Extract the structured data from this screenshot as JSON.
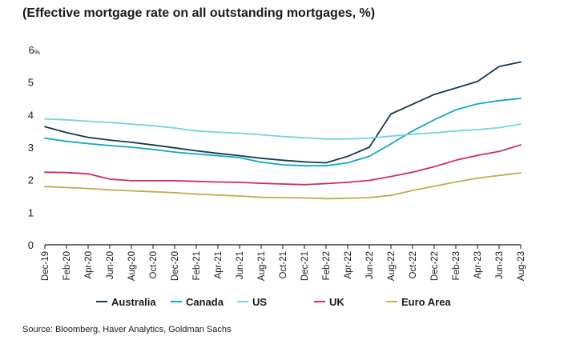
{
  "title": "(Effective mortgage rate on all outstanding mortgages, %)",
  "source": "Source: Bloomberg, Haver Analytics, Goldman Sachs",
  "chart_data": {
    "type": "line",
    "title": "(Effective mortgage rate on all outstanding mortgages, %)",
    "xlabel": "",
    "ylabel": "",
    "y_unit": "%",
    "ylim": [
      0,
      6
    ],
    "yticks": [
      0,
      1,
      2,
      3,
      4,
      5,
      6
    ],
    "grid": false,
    "legend_position": "bottom",
    "x": [
      "Dec-19",
      "Feb-20",
      "Apr-20",
      "Jun-20",
      "Aug-20",
      "Oct-20",
      "Dec-20",
      "Feb-21",
      "Apr-21",
      "Jun-21",
      "Aug-21",
      "Oct-21",
      "Dec-21",
      "Feb-22",
      "Apr-22",
      "Jun-22",
      "Aug-22",
      "Oct-22",
      "Dec-22",
      "Feb-23",
      "Apr-23",
      "Jun-23",
      "Aug-23"
    ],
    "series": [
      {
        "name": "Australia",
        "color": "#16394f",
        "values": [
          3.63,
          3.45,
          3.3,
          3.22,
          3.15,
          3.07,
          2.98,
          2.89,
          2.81,
          2.74,
          2.66,
          2.6,
          2.55,
          2.52,
          2.72,
          3.0,
          4.02,
          4.32,
          4.62,
          4.82,
          5.02,
          5.48,
          5.62
        ]
      },
      {
        "name": "Canada",
        "color": "#10a7c9",
        "values": [
          3.28,
          3.18,
          3.11,
          3.05,
          3.0,
          2.93,
          2.85,
          2.79,
          2.74,
          2.68,
          2.54,
          2.46,
          2.43,
          2.43,
          2.52,
          2.72,
          3.1,
          3.5,
          3.84,
          4.15,
          4.33,
          4.43,
          4.5
        ]
      },
      {
        "name": "US",
        "color": "#72d3e0",
        "values": [
          3.87,
          3.84,
          3.8,
          3.76,
          3.71,
          3.66,
          3.59,
          3.5,
          3.46,
          3.43,
          3.38,
          3.33,
          3.29,
          3.25,
          3.25,
          3.28,
          3.34,
          3.4,
          3.44,
          3.5,
          3.54,
          3.6,
          3.71
        ]
      },
      {
        "name": "UK",
        "color": "#cc2b6b",
        "values": [
          2.23,
          2.22,
          2.18,
          2.02,
          1.97,
          1.97,
          1.97,
          1.95,
          1.93,
          1.92,
          1.89,
          1.87,
          1.85,
          1.88,
          1.92,
          1.98,
          2.1,
          2.23,
          2.4,
          2.6,
          2.75,
          2.87,
          3.07
        ]
      },
      {
        "name": "Euro Area",
        "color": "#c2ab4b",
        "values": [
          1.79,
          1.76,
          1.73,
          1.69,
          1.66,
          1.63,
          1.6,
          1.56,
          1.53,
          1.5,
          1.46,
          1.45,
          1.44,
          1.42,
          1.43,
          1.45,
          1.52,
          1.67,
          1.8,
          1.93,
          2.05,
          2.13,
          2.21
        ]
      }
    ]
  }
}
